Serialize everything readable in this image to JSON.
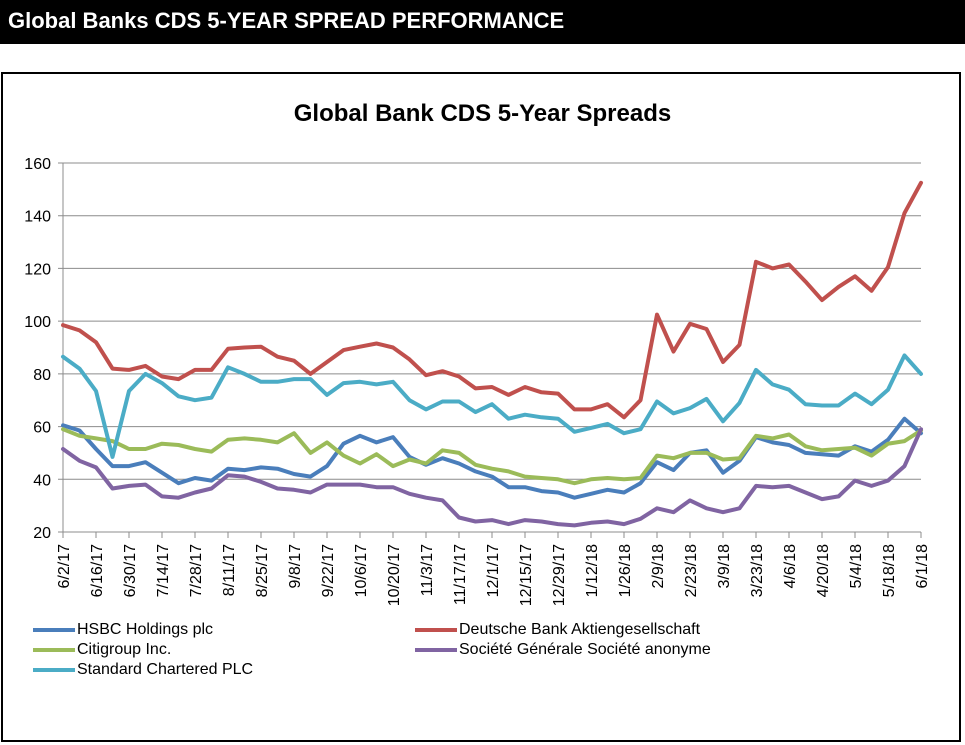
{
  "header": {
    "title": "Global Banks CDS 5-YEAR SPREAD PERFORMANCE"
  },
  "chart_data": {
    "type": "line",
    "title": "Global Bank CDS 5-Year Spreads",
    "xlabel": "",
    "ylabel": "",
    "ylim": [
      20,
      160
    ],
    "yticks": [
      20,
      40,
      60,
      80,
      100,
      120,
      140,
      160
    ],
    "grid": true,
    "legend_position": "bottom",
    "x_tick_labels": [
      "6/2/17",
      "6/16/17",
      "6/30/17",
      "7/14/17",
      "7/28/17",
      "8/11/17",
      "8/25/17",
      "9/8/17",
      "9/22/17",
      "10/6/17",
      "10/20/17",
      "11/3/17",
      "11/17/17",
      "12/1/17",
      "12/15/17",
      "12/29/17",
      "1/12/18",
      "1/26/18",
      "2/9/18",
      "2/23/18",
      "3/9/18",
      "3/23/18",
      "4/6/18",
      "4/20/18",
      "5/4/18",
      "5/18/18",
      "6/1/18"
    ],
    "x_frequency": "weekly",
    "point_count": 53,
    "series": [
      {
        "name": "HSBC Holdings plc",
        "color": "#4A7EBB",
        "values": [
          60.5,
          58.5,
          51.5,
          45,
          45,
          46.5,
          42.5,
          38.5,
          40.5,
          39.5,
          44,
          43.5,
          44.5,
          44,
          42,
          41,
          45,
          53.5,
          56.5,
          54,
          56,
          48.5,
          45.5,
          48,
          46,
          43,
          41,
          37,
          37,
          35.5,
          35,
          33,
          34.5,
          36,
          35,
          38.5,
          46.5,
          43.5,
          50,
          51,
          42.5,
          47,
          56,
          54,
          53,
          50,
          49.5,
          49,
          52.5,
          50.5,
          55,
          63,
          57.5
        ]
      },
      {
        "name": "Deutsche Bank Aktiengesellschaft",
        "color": "#C0504D",
        "values": [
          98.5,
          96.5,
          92,
          82,
          81.5,
          83,
          79,
          78,
          81.5,
          81.5,
          89.5,
          90,
          90.3,
          86.5,
          85,
          80,
          84.5,
          89,
          90.3,
          91.5,
          90,
          85.5,
          79.5,
          81,
          79,
          74.5,
          75,
          72,
          75,
          73,
          72.5,
          66.5,
          66.5,
          68.5,
          63.5,
          70,
          102.5,
          88.5,
          99,
          97,
          84.5,
          91,
          122.5,
          120,
          121.5,
          115,
          108,
          113,
          117,
          111.5,
          120.5,
          141,
          152.5
        ]
      },
      {
        "name": "Citigroup Inc.",
        "color": "#9BBB59",
        "values": [
          59,
          56.5,
          55.5,
          54.5,
          51.5,
          51.5,
          53.5,
          53,
          51.5,
          50.5,
          55,
          55.5,
          55,
          54,
          57.5,
          50,
          54,
          49,
          46,
          49.5,
          45,
          47.5,
          46,
          51,
          50,
          45.5,
          44,
          43,
          41,
          40.5,
          40,
          38.5,
          40,
          40.5,
          40,
          40.5,
          49,
          48,
          50,
          50,
          47.5,
          48,
          56.5,
          55.5,
          57,
          52.5,
          51,
          51.5,
          52,
          49,
          53.5,
          54.5,
          58.5
        ]
      },
      {
        "name": "Société Générale Société anonyme",
        "color": "#8064A2",
        "values": [
          51.5,
          47,
          44.5,
          36.5,
          37.5,
          38,
          33.5,
          33,
          35,
          36.5,
          41.5,
          41,
          39,
          36.5,
          36,
          35,
          38,
          38,
          38,
          37,
          37,
          34.5,
          33,
          32,
          25.5,
          24,
          24.5,
          23,
          24.5,
          24,
          23,
          22.5,
          23.5,
          24,
          23,
          25,
          29,
          27.5,
          32,
          29,
          27.5,
          29,
          37.5,
          37,
          37.5,
          35,
          32.5,
          33.5,
          39.5,
          37.5,
          39.5,
          45,
          59
        ]
      },
      {
        "name": "Standard Chartered PLC",
        "color": "#4BACC6",
        "values": [
          86.5,
          82,
          73.5,
          48.5,
          73.5,
          80,
          76.5,
          71.5,
          70,
          71,
          82.5,
          80,
          77,
          77,
          78,
          78,
          72,
          76.5,
          77,
          76,
          77,
          70,
          66.5,
          69.5,
          69.5,
          65.5,
          68.5,
          63,
          64.5,
          63.5,
          63,
          58,
          59.5,
          61,
          57.5,
          59,
          69.5,
          65,
          67,
          70.5,
          62,
          69,
          81.5,
          76,
          74,
          68.5,
          68,
          68,
          72.5,
          68.5,
          74,
          87,
          80
        ]
      }
    ]
  }
}
